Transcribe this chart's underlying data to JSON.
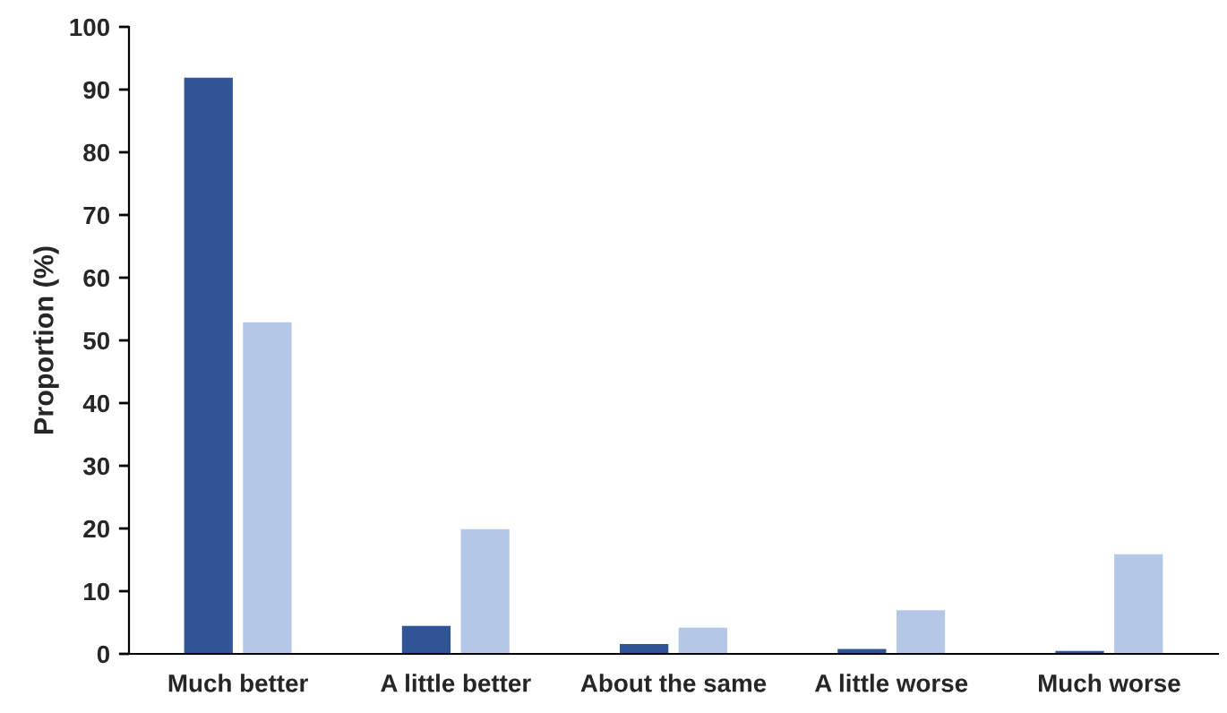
{
  "chart_data": {
    "type": "bar",
    "ylabel": "Proportion (%)",
    "categories": [
      "Much better",
      "A little better",
      "About the same",
      "A little worse",
      "Much worse"
    ],
    "series": [
      {
        "color": "#2f5597",
        "values": [
          92,
          4.6,
          1.7,
          0.9,
          0.6
        ]
      },
      {
        "color": "#b4c7e7",
        "values": [
          53,
          20,
          4.3,
          7.1,
          16
        ]
      }
    ],
    "ylim": [
      0,
      100
    ],
    "yticks": [
      0,
      10,
      20,
      30,
      40,
      50,
      60,
      70,
      80,
      90,
      100
    ],
    "grid": false
  }
}
